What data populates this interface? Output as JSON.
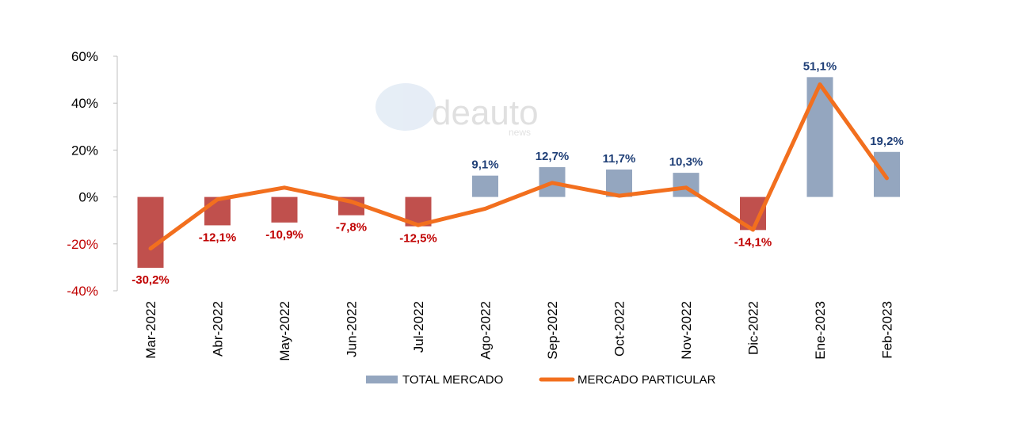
{
  "watermark": {
    "logo_text": "deauto",
    "sub_text": "news"
  },
  "colors": {
    "bar_positive": "#94a6bf",
    "bar_negative": "#c0504d",
    "line": "#f26f1e",
    "label_positive": "#1f3f77",
    "label_negative": "#c00000",
    "tick_positive": "#000000",
    "tick_negative": "#c00000",
    "axis": "#bfbfbf"
  },
  "chart_data": {
    "type": "bar",
    "categories": [
      "Mar-2022",
      "Abr-2022",
      "May-2022",
      "Jun-2022",
      "Jul-2022",
      "Ago-2022",
      "Sep-2022",
      "Oct-2022",
      "Nov-2022",
      "Dic-2022",
      "Ene-2023",
      "Feb-2023"
    ],
    "series": [
      {
        "name": "TOTAL MERCADO",
        "type": "bar",
        "values": [
          -30.2,
          -12.1,
          -10.9,
          -7.8,
          -12.5,
          9.1,
          12.7,
          11.7,
          10.3,
          -14.1,
          51.1,
          19.2
        ],
        "labels": [
          "-30,2%",
          "-12,1%",
          "-10,9%",
          "-7,8%",
          "-12,5%",
          "9,1%",
          "12,7%",
          "11,7%",
          "10,3%",
          "-14,1%",
          "51,1%",
          "19,2%"
        ]
      },
      {
        "name": "MERCADO PARTICULAR",
        "type": "line",
        "values": [
          -22,
          -1,
          4,
          -2,
          -12,
          -5,
          6,
          0.5,
          4,
          -14,
          48,
          8
        ]
      }
    ],
    "yticks": [
      {
        "value": 60,
        "label": "60%"
      },
      {
        "value": 40,
        "label": "40%"
      },
      {
        "value": 20,
        "label": "20%"
      },
      {
        "value": 0,
        "label": "0%"
      },
      {
        "value": -20,
        "label": "-20%"
      },
      {
        "value": -40,
        "label": "-40%"
      }
    ],
    "ylim": [
      -40,
      60
    ],
    "grid": false,
    "legend_position": "bottom",
    "title": "",
    "xlabel": "",
    "ylabel": ""
  }
}
